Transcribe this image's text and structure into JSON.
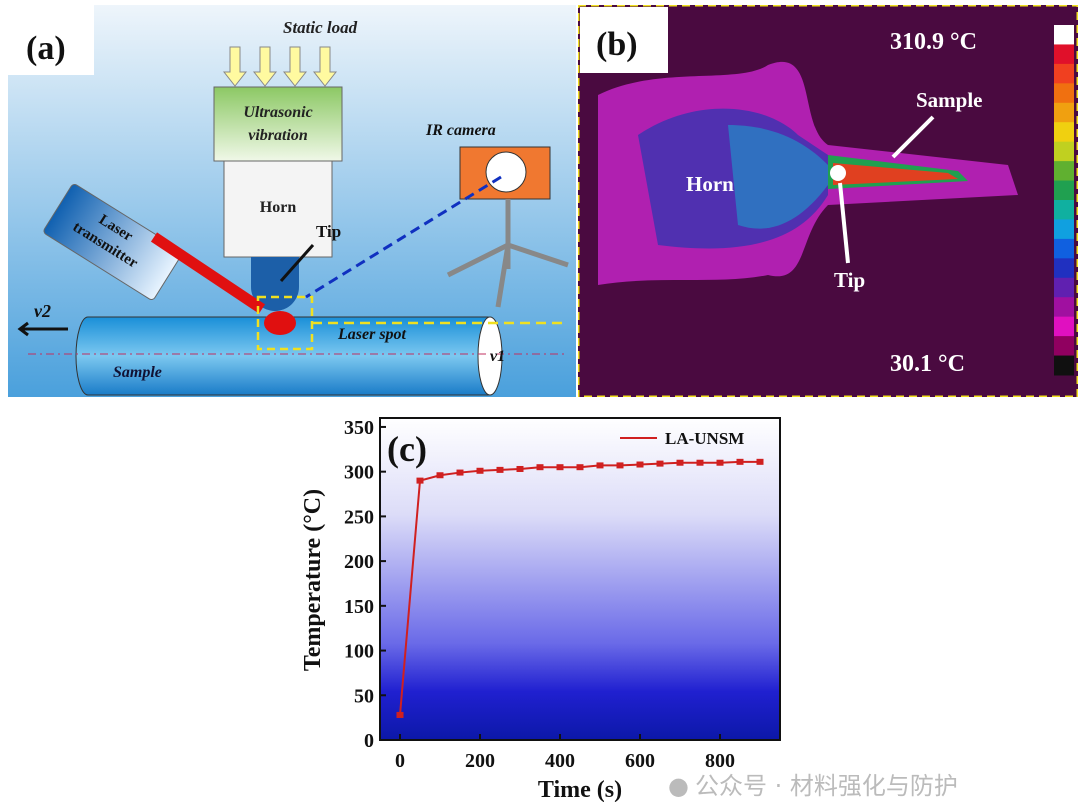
{
  "panel_a": {
    "label": "(a)",
    "static_load": "Static load",
    "ultrasonic": [
      "Ultrasonic",
      "vibration"
    ],
    "horn": "Horn",
    "tip": "Tip",
    "laser": [
      "Laser",
      "transmitter"
    ],
    "ir_camera": "IR camera",
    "laser_spot": "Laser spot",
    "sample": "Sample",
    "v2": "v2",
    "v1": "v1"
  },
  "panel_b": {
    "label": "(b)",
    "max_temp": "310.9 °C",
    "min_temp": "30.1 °C",
    "horn": "Horn",
    "sample": "Sample",
    "tip": "Tip",
    "colorbar": [
      "#ffffff",
      "#e0102a",
      "#f04020",
      "#f07010",
      "#f0a010",
      "#f0d010",
      "#c0d020",
      "#60b030",
      "#20a050",
      "#10b0a0",
      "#10a0e0",
      "#1060e0",
      "#2030c0",
      "#6020b0",
      "#a010a0",
      "#e010c0",
      "#900060",
      "#101010"
    ]
  },
  "chart_data": {
    "type": "line",
    "label": "(c)",
    "xlabel": "Time (s)",
    "ylabel": "Temperature (°C)",
    "xlim": [
      -50,
      950
    ],
    "ylim": [
      0,
      360
    ],
    "xticks": [
      0,
      200,
      400,
      600,
      800
    ],
    "yticks": [
      0,
      50,
      100,
      150,
      200,
      250,
      300,
      350
    ],
    "legend": "top-right",
    "grid": false,
    "series": [
      {
        "name": "LA-UNSM",
        "color": "#d02020",
        "x": [
          0,
          50,
          100,
          150,
          200,
          250,
          300,
          350,
          400,
          450,
          500,
          550,
          600,
          650,
          700,
          750,
          800,
          850,
          900
        ],
        "y": [
          28,
          290,
          296,
          299,
          301,
          302,
          303,
          305,
          305,
          305,
          307,
          307,
          308,
          309,
          310,
          310,
          310,
          311,
          311
        ]
      }
    ]
  },
  "watermark": "公众号 · 材料强化与防护"
}
